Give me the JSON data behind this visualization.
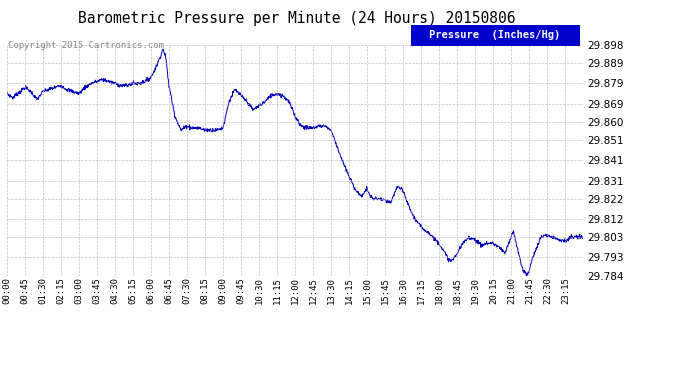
{
  "title": "Barometric Pressure per Minute (24 Hours) 20150806",
  "copyright": "Copyright 2015 Cartronics.com",
  "legend_label": "Pressure  (Inches/Hg)",
  "line_color": "#0000bb",
  "background_color": "#ffffff",
  "grid_color": "#b0b0b0",
  "ylim": [
    29.784,
    29.898
  ],
  "yticks": [
    29.784,
    29.793,
    29.803,
    29.812,
    29.822,
    29.831,
    29.841,
    29.851,
    29.86,
    29.869,
    29.879,
    29.889,
    29.898
  ],
  "xtick_labels": [
    "00:00",
    "00:45",
    "01:30",
    "02:15",
    "03:00",
    "03:45",
    "04:30",
    "05:15",
    "06:00",
    "06:45",
    "07:30",
    "08:15",
    "09:00",
    "09:45",
    "10:30",
    "11:15",
    "12:00",
    "12:45",
    "13:30",
    "14:15",
    "15:00",
    "15:45",
    "16:30",
    "17:15",
    "18:00",
    "18:45",
    "19:30",
    "20:15",
    "21:00",
    "21:45",
    "22:30",
    "23:15"
  ],
  "control_points": [
    [
      0.0,
      29.874
    ],
    [
      0.25,
      29.872
    ],
    [
      0.75,
      29.877
    ],
    [
      1.0,
      29.875
    ],
    [
      1.25,
      29.871
    ],
    [
      1.5,
      29.875
    ],
    [
      1.75,
      29.876
    ],
    [
      2.0,
      29.877
    ],
    [
      2.25,
      29.878
    ],
    [
      2.5,
      29.876
    ],
    [
      2.75,
      29.875
    ],
    [
      3.0,
      29.874
    ],
    [
      3.25,
      29.877
    ],
    [
      3.5,
      29.879
    ],
    [
      3.75,
      29.88
    ],
    [
      4.0,
      29.881
    ],
    [
      4.25,
      29.88
    ],
    [
      4.5,
      29.879
    ],
    [
      4.75,
      29.878
    ],
    [
      5.0,
      29.878
    ],
    [
      5.25,
      29.879
    ],
    [
      5.5,
      29.879
    ],
    [
      5.75,
      29.88
    ],
    [
      6.0,
      29.882
    ],
    [
      6.25,
      29.888
    ],
    [
      6.5,
      29.896
    ],
    [
      6.6,
      29.893
    ],
    [
      6.75,
      29.878
    ],
    [
      7.0,
      29.863
    ],
    [
      7.25,
      29.856
    ],
    [
      7.5,
      29.858
    ],
    [
      7.75,
      29.857
    ],
    [
      8.0,
      29.857
    ],
    [
      8.25,
      29.856
    ],
    [
      8.5,
      29.856
    ],
    [
      8.75,
      29.856
    ],
    [
      9.0,
      29.857
    ],
    [
      9.25,
      29.87
    ],
    [
      9.5,
      29.876
    ],
    [
      9.75,
      29.873
    ],
    [
      10.0,
      29.87
    ],
    [
      10.25,
      29.866
    ],
    [
      10.5,
      29.868
    ],
    [
      10.75,
      29.87
    ],
    [
      11.0,
      29.873
    ],
    [
      11.25,
      29.874
    ],
    [
      11.5,
      29.873
    ],
    [
      11.75,
      29.87
    ],
    [
      12.0,
      29.863
    ],
    [
      12.25,
      29.858
    ],
    [
      12.5,
      29.857
    ],
    [
      12.75,
      29.857
    ],
    [
      13.0,
      29.858
    ],
    [
      13.25,
      29.858
    ],
    [
      13.5,
      29.856
    ],
    [
      13.75,
      29.848
    ],
    [
      14.0,
      29.84
    ],
    [
      14.25,
      29.833
    ],
    [
      14.5,
      29.827
    ],
    [
      14.75,
      29.823
    ],
    [
      15.0,
      29.827
    ],
    [
      15.1,
      29.824
    ],
    [
      15.25,
      29.822
    ],
    [
      15.5,
      29.822
    ],
    [
      15.75,
      29.821
    ],
    [
      16.0,
      29.82
    ],
    [
      16.25,
      29.828
    ],
    [
      16.5,
      29.826
    ],
    [
      16.75,
      29.818
    ],
    [
      17.0,
      29.812
    ],
    [
      17.25,
      29.808
    ],
    [
      17.5,
      29.806
    ],
    [
      17.75,
      29.803
    ],
    [
      18.0,
      29.8
    ],
    [
      18.15,
      29.797
    ],
    [
      18.35,
      29.793
    ],
    [
      18.5,
      29.791
    ],
    [
      18.65,
      29.793
    ],
    [
      18.75,
      29.795
    ],
    [
      19.0,
      29.8
    ],
    [
      19.25,
      29.803
    ],
    [
      19.5,
      29.802
    ],
    [
      19.75,
      29.799
    ],
    [
      20.0,
      29.8
    ],
    [
      20.25,
      29.8
    ],
    [
      20.5,
      29.798
    ],
    [
      20.75,
      29.795
    ],
    [
      21.0,
      29.803
    ],
    [
      21.1,
      29.806
    ],
    [
      21.2,
      29.801
    ],
    [
      21.35,
      29.793
    ],
    [
      21.5,
      29.787
    ],
    [
      21.65,
      29.784
    ],
    [
      21.75,
      29.786
    ],
    [
      21.85,
      29.791
    ],
    [
      22.0,
      29.796
    ],
    [
      22.25,
      29.803
    ],
    [
      22.5,
      29.804
    ],
    [
      22.75,
      29.803
    ],
    [
      23.0,
      29.802
    ],
    [
      23.25,
      29.801
    ],
    [
      23.5,
      29.803
    ],
    [
      23.75,
      29.803
    ],
    [
      24.0,
      29.803
    ]
  ]
}
